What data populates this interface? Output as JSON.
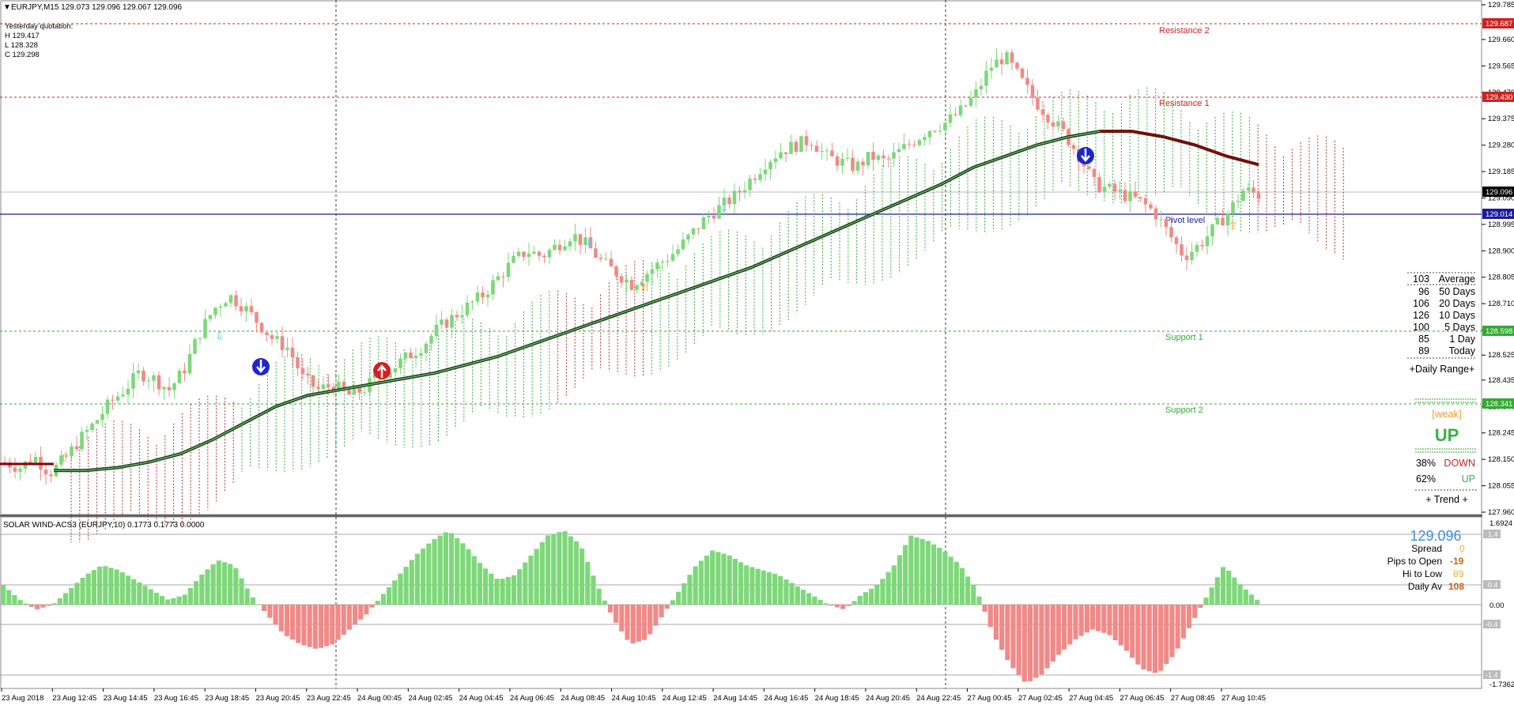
{
  "header": {
    "symbol_line": "EURJPY,M15  129.073 129.096 129.067 129.096",
    "yesterday": [
      "Yesterday quotation:",
      "H 129.417",
      "L 128.328",
      "C 129.298"
    ]
  },
  "levels": {
    "resistance2": {
      "label": "Resistance 2",
      "price": 129.687
    },
    "resistance1": {
      "label": "Resistance 1",
      "price": 129.43
    },
    "pivot": {
      "label": "Pivot level",
      "price": 129.014
    },
    "support1": {
      "label": "Support 1",
      "price": 128.598
    },
    "support2": {
      "label": "Support 2",
      "price": 128.341
    },
    "current": 129.096
  },
  "price_axis": {
    "ticks": [
      "129.785",
      "129.660",
      "129.565",
      "129.470",
      "129.375",
      "129.280",
      "129.185",
      "129.090",
      "128.995",
      "128.900",
      "128.805",
      "128.710",
      "128.615",
      "128.525",
      "128.435",
      "128.340",
      "128.245",
      "128.150",
      "128.055",
      "127.960"
    ],
    "tag_r2": "129.687",
    "tag_r1": "129.430",
    "tag_current": "129.096",
    "tag_pivot": "129.014",
    "tag_s1": "128.598",
    "tag_s2": "128.341"
  },
  "range_table": {
    "header": [
      "103",
      "Average"
    ],
    "rows": [
      [
        "96",
        "50 Days"
      ],
      [
        "106",
        "20 Days"
      ],
      [
        "126",
        "10 Days"
      ],
      [
        "100",
        "5 Days"
      ],
      [
        "85",
        "1 Day"
      ],
      [
        "89",
        "Today"
      ]
    ],
    "footer": "+Daily Range+"
  },
  "trend": {
    "strength": "[weak]",
    "direction": "UP",
    "down_pct": "38%",
    "down_label": "DOWN",
    "up_pct": "62%",
    "up_label": "UP",
    "footer": "+    Trend    +"
  },
  "indicator": {
    "title": "SOLAR WIND-ACS3 (EURJPY,10) 0.1773 0.1773 0.0000",
    "axis": [
      "1.6924",
      "1.4",
      "0.4",
      "0.00",
      "-0.4",
      "-1.4",
      "-1.7362"
    ]
  },
  "info_panel": {
    "price": "129.096",
    "rows": [
      {
        "label": "Spread",
        "value": "0"
      },
      {
        "label": "Pips to Open",
        "value": "-19"
      },
      {
        "label": "Hi to Low",
        "value": "89"
      },
      {
        "label": "Daily Av",
        "value": "108"
      }
    ]
  },
  "time_axis": [
    "23 Aug 2018",
    "23 Aug 12:45",
    "23 Aug 14:45",
    "23 Aug 16:45",
    "23 Aug 18:45",
    "23 Aug 20:45",
    "23 Aug 22:45",
    "24 Aug 00:45",
    "24 Aug 02:45",
    "24 Aug 04:45",
    "24 Aug 06:45",
    "24 Aug 08:45",
    "24 Aug 10:45",
    "24 Aug 12:45",
    "24 Aug 14:45",
    "24 Aug 16:45",
    "24 Aug 18:45",
    "24 Aug 20:45",
    "24 Aug 22:45",
    "27 Aug 00:45",
    "27 Aug 02:45",
    "27 Aug 04:45",
    "27 Aug 06:45",
    "27 Aug 08:45",
    "27 Aug 10:45"
  ],
  "colors": {
    "bull": "#7ed87a",
    "bear": "#f08a88",
    "pivot_line": "#1b1b9c",
    "resistance": "#cc2222",
    "support": "#33aa33",
    "ma": "#1a3d1a",
    "ma_down": "#8b0000",
    "info_blue": "#3c8fd6",
    "orange": "#e8a030",
    "up_green": "#3cb043",
    "down_red": "#cc2222"
  },
  "chart_data": {
    "type": "candlestick",
    "symbol": "EURJPY",
    "timeframe": "M15",
    "ylim": [
      127.96,
      129.785
    ],
    "key_levels": [
      129.687,
      129.43,
      129.014,
      128.598,
      128.341
    ],
    "close_path": [
      128.14,
      128.12,
      128.16,
      128.1,
      128.15,
      128.22,
      128.28,
      128.35,
      128.4,
      128.46,
      128.44,
      128.4,
      128.47,
      128.6,
      128.69,
      128.74,
      128.7,
      128.64,
      128.58,
      128.55,
      128.44,
      128.4,
      128.42,
      128.38,
      128.4,
      128.45,
      128.48,
      128.52,
      128.56,
      128.62,
      128.66,
      128.7,
      128.74,
      128.8,
      128.86,
      128.9,
      128.88,
      128.92,
      128.96,
      128.92,
      128.86,
      128.82,
      128.78,
      128.82,
      128.86,
      128.9,
      128.96,
      129.02,
      129.06,
      129.1,
      129.16,
      129.22,
      129.26,
      129.28,
      129.3,
      129.24,
      129.22,
      129.2,
      129.24,
      129.22,
      129.26,
      129.3,
      129.34,
      129.36,
      129.4,
      129.46,
      129.56,
      129.6,
      129.52,
      129.44,
      129.38,
      129.32,
      129.24,
      129.14,
      129.12,
      129.1,
      129.08,
      129.04,
      128.96,
      128.88,
      128.92,
      128.98,
      129.04,
      129.12,
      129.1
    ],
    "histogram_path": [
      0.4,
      0.1,
      -0.1,
      0.0,
      0.3,
      0.6,
      0.8,
      0.7,
      0.5,
      0.3,
      0.1,
      0.2,
      0.6,
      0.9,
      0.8,
      0.2,
      -0.2,
      -0.6,
      -0.8,
      -0.9,
      -0.8,
      -0.5,
      -0.2,
      0.2,
      0.6,
      1.0,
      1.3,
      1.5,
      1.2,
      0.8,
      0.5,
      0.6,
      1.0,
      1.4,
      1.5,
      1.2,
      0.4,
      -0.3,
      -0.8,
      -0.7,
      -0.2,
      0.3,
      0.8,
      1.1,
      1.0,
      0.8,
      0.7,
      0.6,
      0.4,
      0.2,
      0.0,
      -0.1,
      0.2,
      0.4,
      0.8,
      1.4,
      1.3,
      1.1,
      0.8,
      0.3,
      -0.6,
      -1.2,
      -1.6,
      -1.4,
      -1.0,
      -0.7,
      -0.5,
      -0.6,
      -0.9,
      -1.3,
      -1.4,
      -1.0,
      -0.4,
      0.2,
      0.8,
      0.4,
      0.1
    ],
    "ma_path": [
      128.11,
      128.11,
      128.12,
      128.14,
      128.17,
      128.22,
      128.28,
      128.34,
      128.38,
      128.4,
      128.42,
      128.44,
      128.46,
      128.49,
      128.52,
      128.56,
      128.6,
      128.64,
      128.68,
      128.72,
      128.76,
      128.8,
      128.84,
      128.89,
      128.94,
      128.99,
      129.04,
      129.09,
      129.14,
      129.2,
      129.24,
      129.28,
      129.31,
      129.33,
      129.33,
      129.31,
      129.28,
      129.24,
      129.21
    ]
  }
}
